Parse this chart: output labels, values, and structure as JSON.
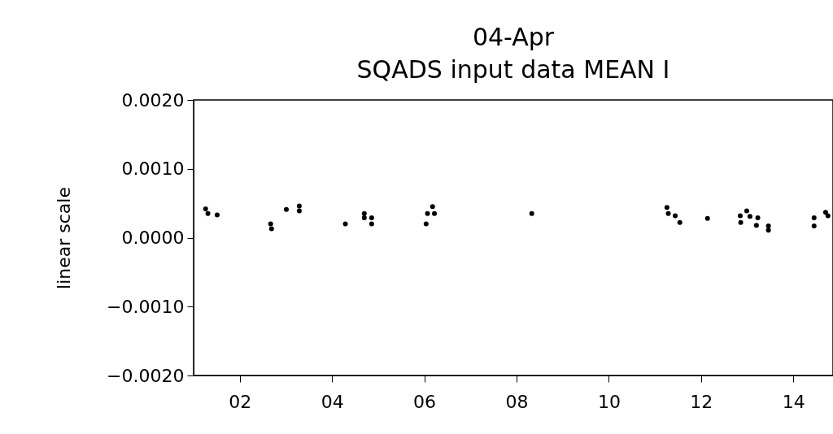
{
  "chart_data": {
    "type": "scatter",
    "title": "SQADS input data MEAN I",
    "subtitle": "04-Apr",
    "ylabel": "linear scale",
    "x": [
      1.26,
      1.31,
      1.51,
      2.67,
      2.69,
      3.01,
      3.29,
      3.29,
      4.29,
      4.7,
      4.7,
      4.86,
      4.86,
      6.04,
      6.07,
      6.18,
      6.22,
      8.33,
      11.26,
      11.29,
      11.44,
      11.54,
      12.14,
      12.85,
      12.86,
      12.99,
      13.06,
      13.23,
      13.2,
      13.46,
      13.46,
      14.45,
      14.45,
      14.7,
      14.75
    ],
    "values": [
      0.00042,
      0.00035,
      0.00033,
      0.0002,
      0.00013,
      0.00041,
      0.00046,
      0.00039,
      0.0002,
      0.00035,
      0.00029,
      0.00029,
      0.0002,
      0.0002,
      0.00035,
      0.00045,
      0.00035,
      0.00035,
      0.00044,
      0.00035,
      0.00032,
      0.00022,
      0.00028,
      0.00032,
      0.00022,
      0.00039,
      0.00031,
      0.00029,
      0.00018,
      0.00017,
      0.00011,
      0.00029,
      0.00017,
      0.00037,
      0.00032
    ],
    "color": "#000000",
    "marker": "circle",
    "grid": false,
    "xlim": [
      1,
      14.86
    ],
    "xticks": [
      {
        "value": 2,
        "label": "02"
      },
      {
        "value": 4,
        "label": "04"
      },
      {
        "value": 6,
        "label": "06"
      },
      {
        "value": 8,
        "label": "08"
      },
      {
        "value": 10,
        "label": "10"
      },
      {
        "value": 12,
        "label": "12"
      },
      {
        "value": 14,
        "label": "14"
      }
    ],
    "ylim": [
      -0.002,
      0.002
    ],
    "yticks": [
      {
        "value": -0.002,
        "label": "−0.0020"
      },
      {
        "value": -0.001,
        "label": "−0.0010"
      },
      {
        "value": 0,
        "label": "0.0000"
      },
      {
        "value": 0.001,
        "label": "0.0010"
      },
      {
        "value": 0.002,
        "label": "0.0020"
      }
    ]
  }
}
